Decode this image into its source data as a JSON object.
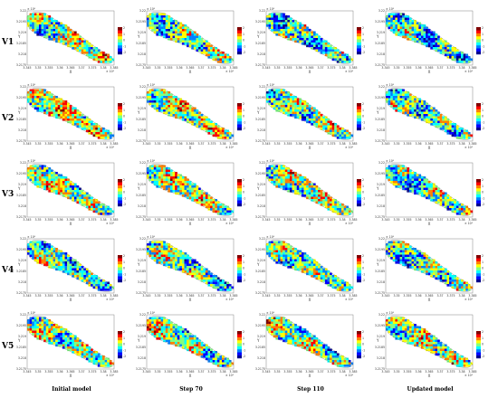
{
  "rows": [
    "V1",
    "V2",
    "V3",
    "V4",
    "V5"
  ],
  "columns": [
    "Initial model",
    "Step 70",
    "Step 110",
    "Updated model"
  ],
  "axes": {
    "xlabel": "X",
    "ylabel": "Y",
    "x_exponent": "× 10⁵",
    "y_exponent": "× 10⁶",
    "x_ticks": [
      "3.345",
      "3.35",
      "3.355",
      "3.36",
      "3.365",
      "3.37",
      "3.375",
      "3.38",
      "3.385"
    ],
    "y_ticks": [
      "3.22",
      "3.2195",
      "3.219",
      "3.2185",
      "3.218",
      "3.2175"
    ]
  },
  "colorbar": {
    "ticks": [
      "2",
      "1",
      "0",
      "-1",
      "-2"
    ]
  },
  "colors": {
    "colormap": [
      "#00008f",
      "#0000ff",
      "#0080ff",
      "#00ffff",
      "#80ff80",
      "#ffff00",
      "#ff8000",
      "#ff0000",
      "#800000"
    ]
  }
}
